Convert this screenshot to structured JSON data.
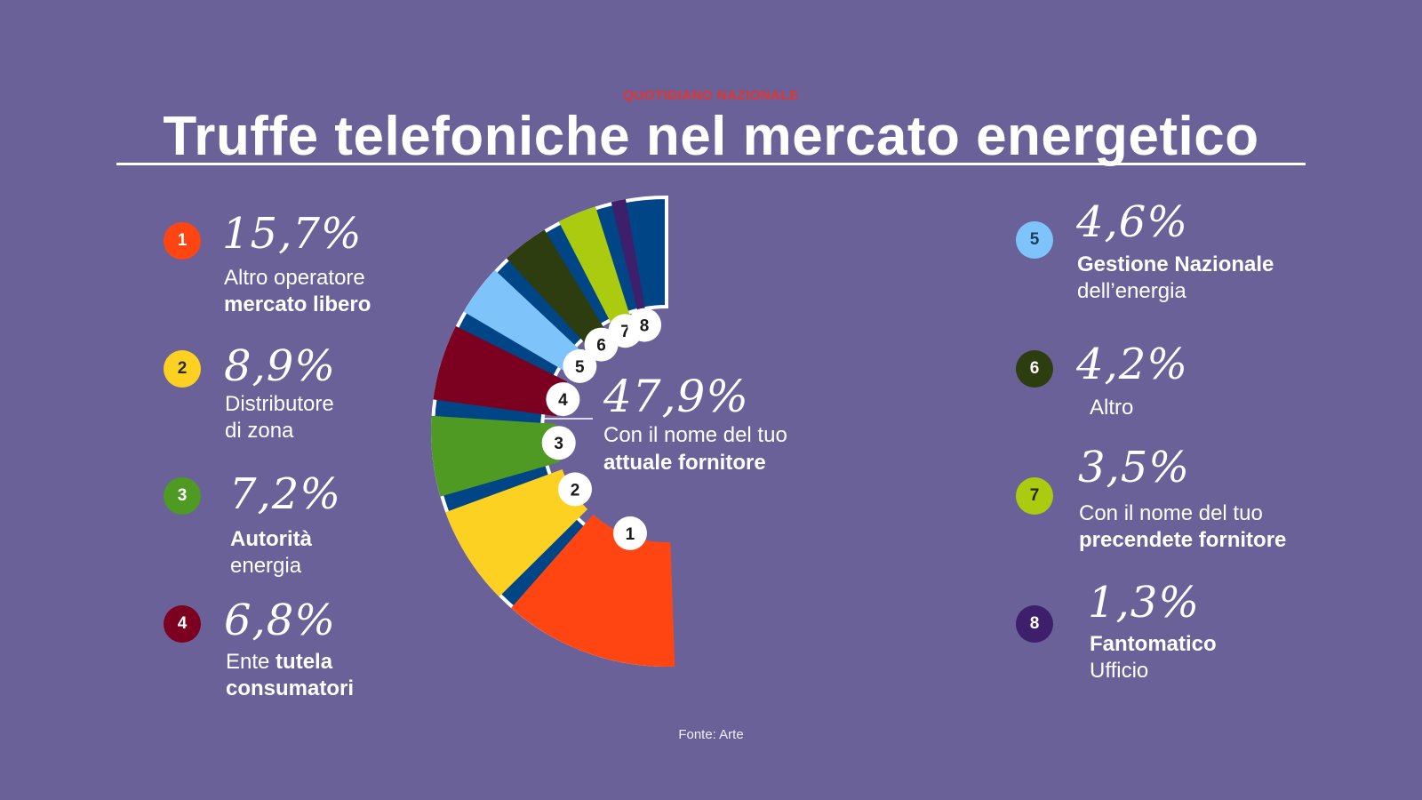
{
  "brand": "QUOTIDIANO NAZIONALE",
  "title": "Truffe telefoniche nel mercato energetico",
  "source": "Fonte: Arte",
  "chart_data": {
    "type": "pie",
    "title": "Truffe telefoniche nel mercato energetico",
    "center": {
      "value": "47,9%",
      "line1": "Con il nome del tuo",
      "line2": "attuale fornitore"
    },
    "main_slice": {
      "label": "Con il nome del tuo attuale fornitore",
      "value": 47.9,
      "color": "#004585"
    },
    "slices": [
      {
        "n": "1",
        "value": 15.7,
        "pct": "15,7%",
        "label_regular": "Altro operatore",
        "label_bold": "mercato libero",
        "color": "#ff4612",
        "badge_text": "#ffffff"
      },
      {
        "n": "2",
        "value": 8.9,
        "pct": "8,9%",
        "label_regular": "Distributore",
        "label_regular2": "di zona",
        "color": "#fdd122",
        "badge_text": "#2a2a2a"
      },
      {
        "n": "3",
        "value": 7.2,
        "pct": "7,2%",
        "label_bold": "Autorità",
        "label_regular": "energia",
        "color": "#4f9a23",
        "badge_text": "#ffffff"
      },
      {
        "n": "4",
        "value": 6.8,
        "pct": "6,8%",
        "label_regular": "Ente",
        "label_bold": "tutela",
        "label_bold2": "consumatori",
        "color": "#7c0020",
        "badge_text": "#ffffff"
      },
      {
        "n": "5",
        "value": 4.6,
        "pct": "4,6%",
        "label_bold": "Gestione Nazionale",
        "label_regular": "dell’energia",
        "color": "#7ec4fb",
        "badge_text": "#1f3b5a"
      },
      {
        "n": "6",
        "value": 4.2,
        "pct": "4,2%",
        "label_regular": "Altro",
        "color": "#2e3d0f",
        "badge_text": "#ffffff"
      },
      {
        "n": "7",
        "value": 3.5,
        "pct": "3,5%",
        "label_regular": "Con il nome del tuo",
        "label_bold": "precendete fornitore",
        "color": "#aacb0f",
        "badge_text": "#1f2a05"
      },
      {
        "n": "8",
        "value": 1.3,
        "pct": "1,3%",
        "label_bold": "Fantomatico",
        "label_regular": "Ufficio",
        "color": "#3e1f6b",
        "badge_text": "#ffffff"
      }
    ]
  }
}
